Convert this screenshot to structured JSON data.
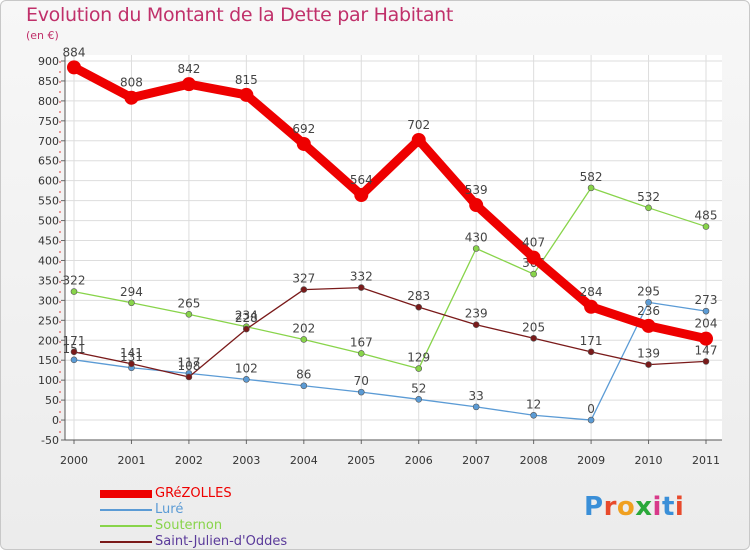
{
  "title": "Evolution du Montant de la Dette par Habitant",
  "unit_label": "(en €)",
  "logo": {
    "text": "Proxiti",
    "colors": [
      "#3a8fd8",
      "#e84a2c",
      "#f0a020",
      "#2aa83a",
      "#d83a8a",
      "#3a8fd8",
      "#e84a2c"
    ]
  },
  "colors": {
    "title": "#c0306a",
    "axis_text": "#333333",
    "value_label": "#444444",
    "grid": "#dddddd"
  },
  "chart_data": {
    "type": "line",
    "title": "Evolution du Montant de la Dette par Habitant",
    "ylabel": "(en €)",
    "xlabel": "",
    "x": [
      "2000",
      "2001",
      "2002",
      "2003",
      "2004",
      "2005",
      "2006",
      "2007",
      "2008",
      "2009",
      "2010",
      "2011"
    ],
    "ylim": [
      -50,
      900
    ],
    "yticks": [
      -50,
      0,
      50,
      100,
      150,
      200,
      250,
      300,
      350,
      400,
      450,
      500,
      550,
      600,
      650,
      700,
      750,
      800,
      850,
      900
    ],
    "legend_position": "bottom-left",
    "series": [
      {
        "name": "GRéZOLLES",
        "color": "#ee0000",
        "values": [
          884,
          808,
          842,
          815,
          692,
          564,
          702,
          539,
          407,
          284,
          236,
          204
        ]
      },
      {
        "name": "Luré",
        "color": "#5b9bd5",
        "values": [
          151,
          131,
          117,
          102,
          86,
          70,
          52,
          33,
          12,
          0,
          295,
          273
        ]
      },
      {
        "name": "Souternon",
        "color": "#88d44a",
        "values": [
          322,
          294,
          265,
          234,
          202,
          167,
          129,
          430,
          366,
          582,
          532,
          485
        ]
      },
      {
        "name": "Saint-Julien-d'Oddes",
        "color": "#7a1a1a",
        "values": [
          171,
          141,
          108,
          228,
          327,
          332,
          283,
          239,
          205,
          171,
          139,
          147
        ]
      }
    ]
  }
}
